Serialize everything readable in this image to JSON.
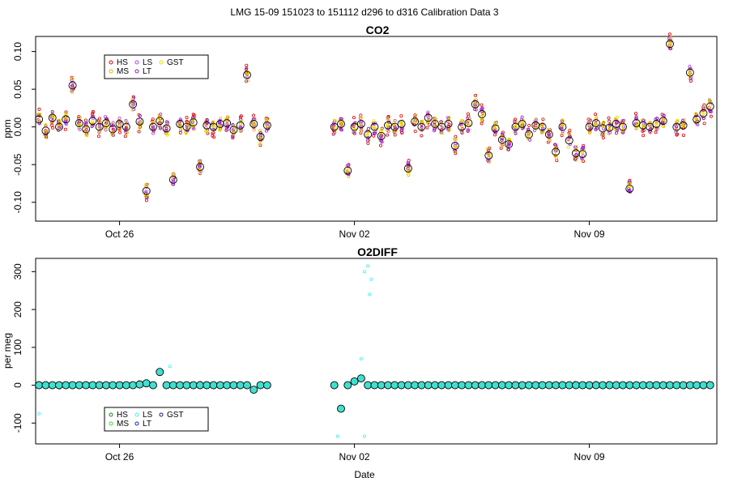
{
  "figure": {
    "title": "LMG   15-09    151023 to 151112    d296 to d316   Calibration Data 3",
    "xlabel": "Date"
  },
  "colors": {
    "HS": "#e00000",
    "MS": "#f0b000",
    "LS": "#b040ff",
    "LT": "#9020c0",
    "GST": "#e8e000",
    "HS2": "#208020",
    "MS2": "#30e030",
    "LS2": "#40f0f0",
    "LT2": "#2020c0",
    "GST2": "#102080",
    "avg": "#000000",
    "fill2": "#40e0d0"
  },
  "chart_data": [
    {
      "type": "scatter",
      "title": "CO2",
      "ylabel": "ppm",
      "xlabel": "",
      "ylim": [
        -0.125,
        0.12
      ],
      "xlim": [
        296.5,
        316.8
      ],
      "yticks": [
        -0.1,
        -0.05,
        0.0,
        0.05,
        0.1
      ],
      "ytick_labels": [
        "-0.10",
        "-0.05",
        "0.00",
        "0.05",
        "0.10"
      ],
      "xticks": [
        299,
        306,
        313
      ],
      "xtick_labels": [
        "Oct 26",
        "Nov 02",
        "Nov 09"
      ],
      "legend": {
        "placement": "top-left",
        "entries": [
          {
            "label": "HS",
            "color": "#e00000"
          },
          {
            "label": "MS",
            "color": "#f0b000"
          },
          {
            "label": "LS",
            "color": "#b040ff"
          },
          {
            "label": "LT",
            "color": "#9020c0"
          },
          {
            "label": "GST",
            "color": "#e8e000"
          }
        ]
      },
      "series": [
        {
          "name": "cycle-mean",
          "marker": "large-open-circle",
          "color": "#000000",
          "x": [
            296.6,
            296.8,
            297.0,
            297.2,
            297.4,
            297.6,
            297.8,
            298.0,
            298.2,
            298.4,
            298.6,
            298.8,
            299.0,
            299.2,
            299.4,
            299.6,
            299.8,
            300.0,
            300.2,
            300.4,
            300.6,
            300.8,
            301.0,
            301.2,
            301.4,
            301.6,
            301.8,
            302.0,
            302.2,
            302.4,
            302.6,
            302.8,
            303.0,
            303.2,
            303.4,
            305.4,
            305.6,
            305.8,
            306.0,
            306.2,
            306.4,
            306.6,
            306.8,
            307.0,
            307.2,
            307.4,
            307.6,
            307.8,
            308.0,
            308.2,
            308.4,
            308.6,
            308.8,
            309.0,
            309.2,
            309.4,
            309.6,
            309.8,
            310.0,
            310.2,
            310.4,
            310.6,
            310.8,
            311.0,
            311.2,
            311.4,
            311.6,
            311.8,
            312.0,
            312.2,
            312.4,
            312.6,
            312.8,
            313.0,
            313.2,
            313.4,
            313.6,
            313.8,
            314.0,
            314.2,
            314.4,
            314.6,
            314.8,
            315.0,
            315.2,
            315.4,
            315.6,
            315.8,
            316.0,
            316.2,
            316.4,
            316.6
          ],
          "y": [
            0.01,
            -0.005,
            0.012,
            0.0,
            0.01,
            0.055,
            0.005,
            -0.003,
            0.008,
            0.0,
            0.005,
            -0.003,
            0.004,
            0.0,
            0.03,
            0.007,
            -0.085,
            0.0,
            0.008,
            -0.002,
            -0.07,
            0.004,
            0.0,
            0.006,
            -0.053,
            0.002,
            0.0,
            0.004,
            0.005,
            -0.004,
            0.002,
            0.069,
            0.004,
            -0.013,
            0.002,
            0.0,
            0.004,
            -0.058,
            0.0,
            0.004,
            -0.01,
            0.0,
            -0.012,
            0.002,
            0.0,
            0.004,
            -0.055,
            0.007,
            0.0,
            0.012,
            0.004,
            0.0,
            0.004,
            -0.025,
            0.0,
            0.005,
            0.03,
            0.017,
            -0.038,
            -0.002,
            -0.017,
            -0.023,
            0.0,
            0.004,
            -0.01,
            0.002,
            0.0,
            -0.01,
            -0.033,
            0.0,
            -0.018,
            -0.035,
            -0.036,
            0.0,
            0.005,
            -0.002,
            -0.001,
            0.004,
            0.0,
            -0.082,
            0.005,
            0.002,
            0.0,
            0.004,
            0.008,
            0.11,
            0.0,
            0.002,
            0.072,
            0.01,
            0.018,
            0.027
          ]
        }
      ]
    },
    {
      "type": "scatter",
      "title": "O2DIFF",
      "ylabel": "per meg",
      "xlabel": "Date",
      "ylim": [
        -155,
        335
      ],
      "xlim": [
        296.5,
        316.8
      ],
      "yticks": [
        -100,
        0,
        100,
        200,
        300
      ],
      "ytick_labels": [
        "-100",
        "0",
        "100",
        "200",
        "300"
      ],
      "xticks": [
        299,
        306,
        313
      ],
      "xtick_labels": [
        "Oct 26",
        "Nov 02",
        "Nov 09"
      ],
      "legend": {
        "placement": "bottom-left",
        "entries": [
          {
            "label": "HS",
            "color": "#208020"
          },
          {
            "label": "MS",
            "color": "#30e030"
          },
          {
            "label": "LS",
            "color": "#40f0f0"
          },
          {
            "label": "LT",
            "color": "#2020c0"
          },
          {
            "label": "GST",
            "color": "#102080"
          }
        ]
      },
      "series": [
        {
          "name": "cycle-mean",
          "marker": "large-open-circle",
          "color": "#000000",
          "x": [
            296.6,
            296.8,
            297.0,
            297.2,
            297.4,
            297.6,
            297.8,
            298.0,
            298.2,
            298.4,
            298.6,
            298.8,
            299.0,
            299.2,
            299.4,
            299.6,
            299.8,
            300.0,
            300.2,
            300.4,
            300.6,
            300.8,
            301.0,
            301.2,
            301.4,
            301.6,
            301.8,
            302.0,
            302.2,
            302.4,
            302.6,
            302.8,
            303.0,
            303.2,
            303.4,
            305.4,
            305.6,
            305.8,
            306.0,
            306.2,
            306.4,
            306.6,
            306.8,
            307.0,
            307.2,
            307.4,
            307.6,
            307.8,
            308.0,
            308.2,
            308.4,
            308.6,
            308.8,
            309.0,
            309.2,
            309.4,
            309.6,
            309.8,
            310.0,
            310.2,
            310.4,
            310.6,
            310.8,
            311.0,
            311.2,
            311.4,
            311.6,
            311.8,
            312.0,
            312.2,
            312.4,
            312.6,
            312.8,
            313.0,
            313.2,
            313.4,
            313.6,
            313.8,
            314.0,
            314.2,
            314.4,
            314.6,
            314.8,
            315.0,
            315.2,
            315.4,
            315.6,
            315.8,
            316.0,
            316.2,
            316.4,
            316.6
          ],
          "y": [
            0,
            0,
            0,
            0,
            0,
            0,
            0,
            0,
            0,
            0,
            0,
            0,
            0,
            0,
            0,
            2,
            5,
            0,
            35,
            0,
            0,
            0,
            0,
            0,
            0,
            0,
            0,
            0,
            0,
            0,
            0,
            0,
            -12,
            0,
            0,
            0,
            -62,
            0,
            10,
            18,
            0,
            0,
            0,
            0,
            0,
            0,
            0,
            0,
            0,
            0,
            0,
            0,
            0,
            0,
            0,
            0,
            0,
            0,
            0,
            0,
            0,
            0,
            0,
            0,
            0,
            0,
            0,
            0,
            0,
            0,
            0,
            0,
            0,
            0,
            0,
            0,
            0,
            0,
            0,
            0,
            0,
            0,
            0,
            0,
            0,
            0,
            0,
            0,
            0,
            0,
            0,
            0
          ]
        },
        {
          "name": "outliers",
          "marker": "small-open-circle",
          "color": "#40f0f0",
          "x": [
            296.6,
            306.3,
            306.4,
            306.5,
            306.45,
            306.2,
            306.3,
            300.5,
            305.5
          ],
          "y": [
            -75,
            300,
            315,
            280,
            240,
            70,
            -135,
            50,
            -135
          ]
        }
      ]
    }
  ]
}
